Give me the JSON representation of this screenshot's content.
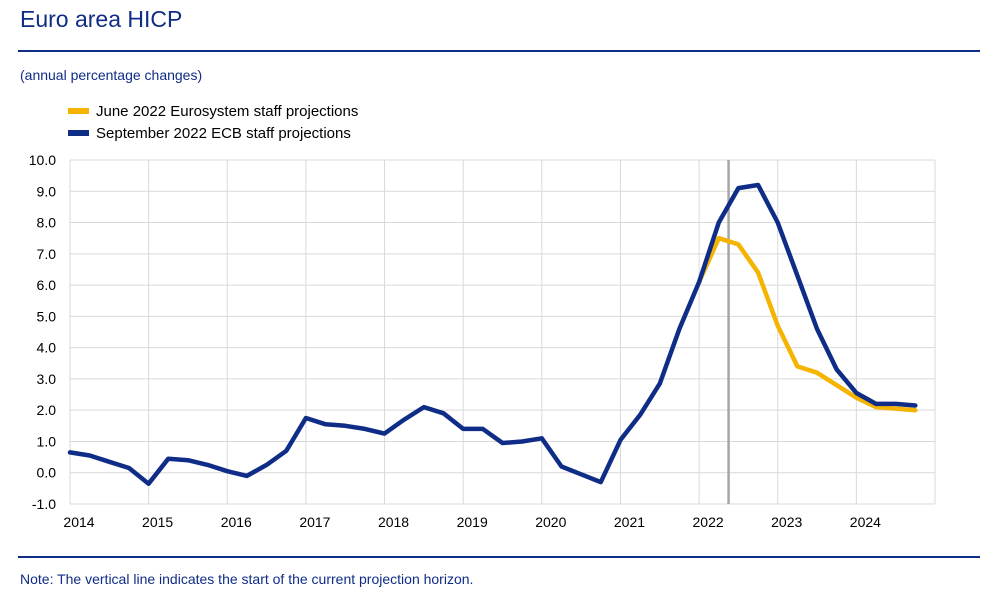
{
  "header": {
    "title": "Euro area HICP"
  },
  "subtitle": "(annual percentage changes)",
  "note": "Note: The vertical line indicates the start of the current projection horizon.",
  "colors": {
    "brand_blue": "#0f2d87",
    "june_series": "#f5b400",
    "sept_series": "#0f2d87",
    "vline": "#a6a6a6",
    "grid": "#d9d9d9"
  },
  "chart_data": {
    "type": "line",
    "title": "Euro area HICP",
    "ylabel": "annual percentage changes",
    "ylim": [
      -1.0,
      10.0
    ],
    "yticks": [
      -1.0,
      0.0,
      1.0,
      2.0,
      3.0,
      4.0,
      5.0,
      6.0,
      7.0,
      8.0,
      9.0,
      10.0
    ],
    "ytick_labels": [
      "-1.0",
      "0.0",
      "1.0",
      "2.0",
      "3.0",
      "4.0",
      "5.0",
      "6.0",
      "7.0",
      "8.0",
      "9.0",
      "10.0"
    ],
    "xlim": [
      2014.0,
      2025.0
    ],
    "xtick_labels": [
      "2014",
      "2015",
      "2016",
      "2017",
      "2018",
      "2019",
      "2020",
      "2021",
      "2022",
      "2023",
      "2024"
    ],
    "projection_start": 2022.375,
    "legend": [
      "June 2022 Eurosystem staff projections",
      "September 2022 ECB staff projections"
    ],
    "series": [
      {
        "name": "June 2022 Eurosystem staff projections",
        "x": [
          2022.0,
          2022.25,
          2022.5,
          2022.75,
          2023.0,
          2023.25,
          2023.5,
          2023.75,
          2024.0,
          2024.25,
          2024.5,
          2024.75
        ],
        "values": [
          6.1,
          7.5,
          7.3,
          6.4,
          4.7,
          3.4,
          3.2,
          2.8,
          2.4,
          2.1,
          2.05,
          2.0
        ]
      },
      {
        "name": "September 2022 ECB staff projections",
        "x": [
          2014.0,
          2014.25,
          2014.5,
          2014.75,
          2015.0,
          2015.25,
          2015.5,
          2015.75,
          2016.0,
          2016.25,
          2016.5,
          2016.75,
          2017.0,
          2017.25,
          2017.5,
          2017.75,
          2018.0,
          2018.25,
          2018.5,
          2018.75,
          2019.0,
          2019.25,
          2019.5,
          2019.75,
          2020.0,
          2020.25,
          2020.5,
          2020.75,
          2021.0,
          2021.25,
          2021.5,
          2021.75,
          2022.0,
          2022.25,
          2022.5,
          2022.75,
          2023.0,
          2023.25,
          2023.5,
          2023.75,
          2024.0,
          2024.25,
          2024.5,
          2024.75
        ],
        "values": [
          0.65,
          0.55,
          0.35,
          0.15,
          -0.35,
          0.45,
          0.4,
          0.25,
          0.05,
          -0.1,
          0.25,
          0.7,
          1.75,
          1.55,
          1.5,
          1.4,
          1.25,
          1.7,
          2.1,
          1.9,
          1.4,
          1.4,
          0.95,
          1.0,
          1.1,
          0.2,
          -0.05,
          -0.3,
          1.05,
          1.85,
          2.85,
          4.6,
          6.1,
          8.0,
          9.1,
          9.2,
          8.0,
          6.3,
          4.6,
          3.3,
          2.55,
          2.2,
          2.2,
          2.15
        ]
      }
    ]
  }
}
